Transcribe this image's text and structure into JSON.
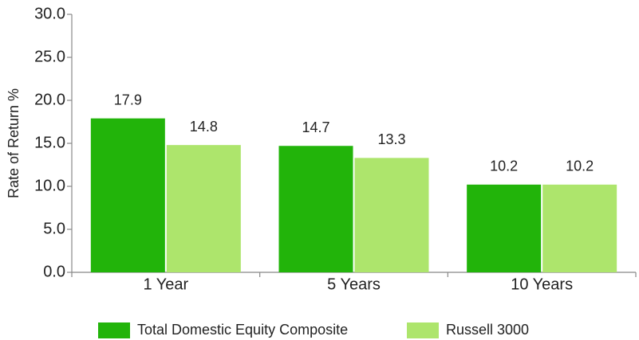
{
  "chart_data": {
    "type": "bar",
    "y_label": "Rate of Return %",
    "categories": [
      "1 Year",
      "5 Years",
      "10 Years"
    ],
    "series": [
      {
        "name": "Total Domestic Equity Composite",
        "color": "#22b40a",
        "values": [
          17.9,
          14.7,
          10.2
        ]
      },
      {
        "name": "Russell 3000",
        "color": "#ade56c",
        "values": [
          14.8,
          13.3,
          10.2
        ]
      }
    ],
    "ylim": [
      0,
      30
    ],
    "yticks": [
      {
        "value": 0,
        "label": "0.0"
      },
      {
        "value": 5,
        "label": "5.0"
      },
      {
        "value": 10,
        "label": "10.0"
      },
      {
        "value": 15,
        "label": "15.0"
      },
      {
        "value": 20,
        "label": "20.0"
      },
      {
        "value": 25,
        "label": "25.0"
      },
      {
        "value": 30,
        "label": "30.0"
      }
    ],
    "legend": "bottom"
  }
}
